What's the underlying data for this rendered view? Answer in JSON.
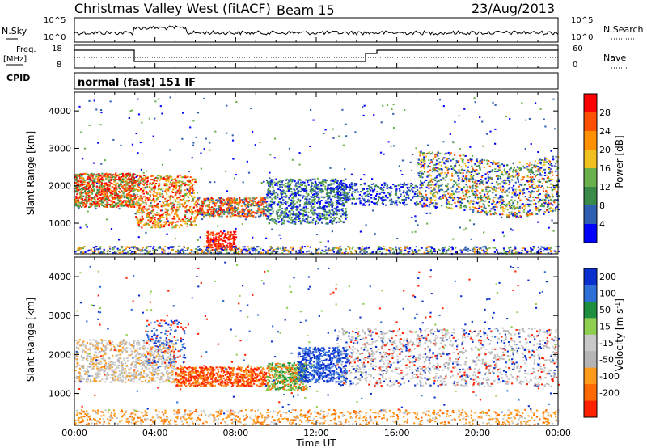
{
  "header": {
    "station": "Christmas Valley West (fitACF)",
    "beam": "Beam 15",
    "date": "23/Aug/2013"
  },
  "panels": {
    "nsky_label": "N.Sky",
    "nsearch_label": "N.Search",
    "nsky_ticks": [
      "10^5",
      "10^0"
    ],
    "nsearch_ticks": [
      "10^5",
      "10^0"
    ],
    "freq_label": "Freq.",
    "freq_unit": "[MHz]",
    "freq_ticks": [
      "18",
      "8"
    ],
    "nave_label": "Nave",
    "nave_ticks": [
      "60",
      "0"
    ],
    "cpid_label": "CPID",
    "cpid_value": "normal (fast) 151 IF"
  },
  "colors": {
    "power": [
      "#0000ff",
      "#2f5fb0",
      "#3a8a4a",
      "#6ab04c",
      "#f0c020",
      "#ff9000",
      "#ff5000",
      "#ff0000"
    ],
    "velocity": [
      "#0a2fcf",
      "#2e6fd8",
      "#1f8f3f",
      "#8fcf4f",
      "#c8c8c8",
      "#b4b4b4",
      "#ff9a1a",
      "#ff6a00",
      "#ff2000"
    ]
  },
  "chart_data": [
    {
      "type": "heatmap",
      "name": "power",
      "ylabel": "Slant Range [km]",
      "yticks": [
        1000,
        2000,
        3000,
        4000
      ],
      "ylim": [
        180,
        4500
      ],
      "colorbar": {
        "label": "Power [dB]",
        "ticks": [
          "4",
          "8",
          "12",
          "16",
          "20",
          "24",
          "28"
        ],
        "range": [
          0,
          32
        ]
      }
    },
    {
      "type": "heatmap",
      "name": "velocity",
      "ylabel": "Slant Range [km]",
      "yticks": [
        1000,
        2000,
        3000,
        4000
      ],
      "ylim": [
        180,
        4500
      ],
      "colorbar": {
        "label": "Velocity [m s",
        "label_sup": "-1",
        "label_end": "]",
        "ticks": [
          "200",
          "100",
          "50",
          "15",
          "-15",
          "-50",
          "-100",
          "-200"
        ]
      }
    }
  ],
  "xaxis": {
    "label": "Time UT",
    "ticks": [
      "00:00",
      "04:00",
      "08:00",
      "12:00",
      "16:00",
      "20:00",
      "00:00"
    ],
    "range_hours": [
      0,
      24
    ]
  }
}
